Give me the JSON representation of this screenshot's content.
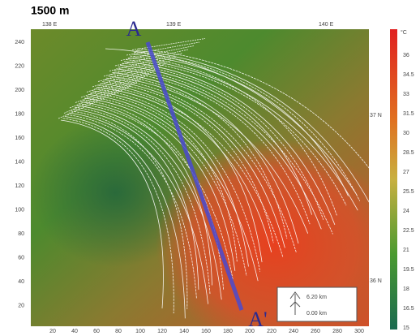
{
  "title": "1500 m",
  "top_axis": [
    "138 E",
    "139 E",
    "140 E"
  ],
  "right_axis": [
    "37 N",
    "36 N"
  ],
  "left_axis": [
    240,
    220,
    200,
    180,
    160,
    140,
    120,
    100,
    80,
    60,
    40,
    20
  ],
  "bottom_axis": [
    20,
    40,
    60,
    80,
    100,
    120,
    140,
    160,
    180,
    200,
    220,
    240,
    260,
    280,
    300
  ],
  "colorbar": {
    "unit": "°C",
    "labels": [
      36,
      34.5,
      33,
      31.5,
      30,
      28.5,
      27,
      25.5,
      24,
      22.5,
      21,
      19.5,
      18,
      16.5,
      15
    ]
  },
  "section": {
    "start": "A",
    "end": "A'"
  },
  "legend": {
    "top": "6.20 km",
    "bottom": "0.00 km"
  }
}
